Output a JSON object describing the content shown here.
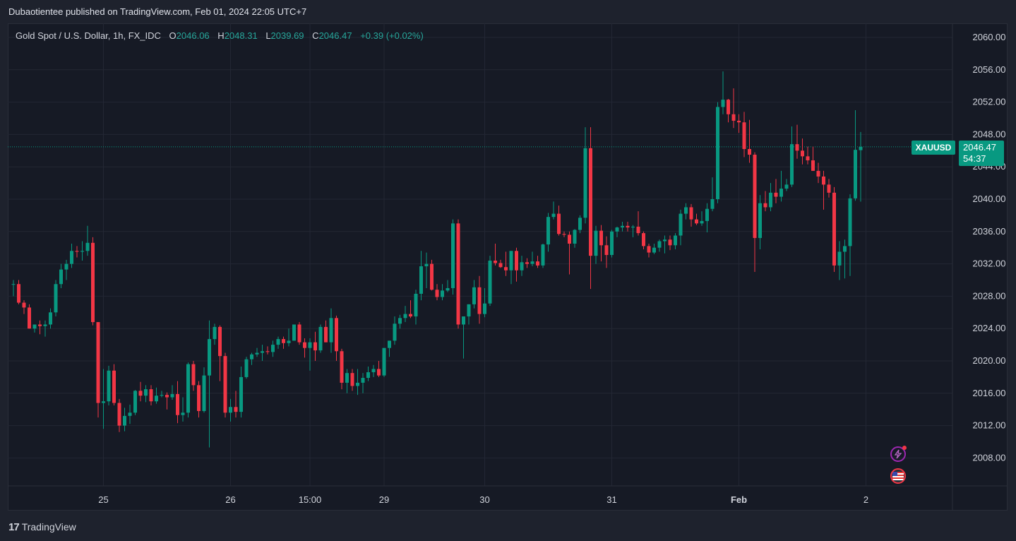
{
  "header": {
    "published_line": "Dubaotientee published on TradingView.com, Feb 01, 2024 22:05 UTC+7"
  },
  "legend": {
    "symbol": "Gold Spot / U.S. Dollar, 1h, FX_IDC",
    "o_label": "O",
    "o_value": "2046.06",
    "h_label": "H",
    "h_value": "2048.31",
    "l_label": "L",
    "l_value": "2039.69",
    "c_label": "C",
    "c_value": "2046.47",
    "change": "+0.39 (+0.02%)"
  },
  "price_tag": {
    "symbol": "XAUUSD",
    "price": "2046.47",
    "countdown": "54:37"
  },
  "footer": {
    "brand": "TradingView",
    "logo": "17"
  },
  "colors": {
    "up": "#089981",
    "down": "#f23645",
    "background": "#161a25",
    "grid": "#232734"
  },
  "icons": [
    "lightning-icon",
    "us-flag-icon"
  ],
  "chart_data": {
    "type": "candlestick",
    "title": "Gold Spot / U.S. Dollar, 1h, FX_IDC",
    "ylim": [
      2004,
      2062
    ],
    "y_ticks": [
      "2060.00",
      "2056.00",
      "2052.00",
      "2048.00",
      "2044.00",
      "2040.00",
      "2036.00",
      "2032.00",
      "2028.00",
      "2024.00",
      "2020.00",
      "2016.00",
      "2012.00",
      "2008.00"
    ],
    "x_ticks": [
      {
        "label": "25",
        "bar": 17
      },
      {
        "label": "26",
        "bar": 41
      },
      {
        "label": "15:00",
        "bar": 56
      },
      {
        "label": "29",
        "bar": 70
      },
      {
        "label": "30",
        "bar": 89
      },
      {
        "label": "31",
        "bar": 113
      },
      {
        "label": "Feb",
        "bar": 137
      },
      {
        "label": "2",
        "bar": 161
      }
    ],
    "last_price": 2046.47,
    "candles": [
      [
        2029.5,
        2030,
        2028,
        2029.5
      ],
      [
        2029.5,
        2030,
        2027,
        2027.2
      ],
      [
        2027.2,
        2027.5,
        2025.8,
        2026.6
      ],
      [
        2026.6,
        2027,
        2024,
        2024
      ],
      [
        2024,
        2024.5,
        2023.5,
        2024.5
      ],
      [
        2024.5,
        2025,
        2023.3,
        2024.3
      ],
      [
        2024.3,
        2025,
        2023,
        2024.5
      ],
      [
        2024.5,
        2026.5,
        2024,
        2026
      ],
      [
        2026,
        2030,
        2025.5,
        2029.5
      ],
      [
        2029.5,
        2032,
        2029,
        2031.3
      ],
      [
        2031.3,
        2032.5,
        2030,
        2032
      ],
      [
        2032,
        2034.5,
        2031.5,
        2033.6
      ],
      [
        2033.6,
        2034.2,
        2032.8,
        2033.5
      ],
      [
        2033.5,
        2034.8,
        2032.4,
        2033.6
      ],
      [
        2033.6,
        2036.7,
        2033,
        2034.6
      ],
      [
        2034.6,
        2035.3,
        2024.4,
        2024.8
      ],
      [
        2024.8,
        2024.8,
        2013,
        2014.8
      ],
      [
        2014.8,
        2019,
        2011.6,
        2015
      ],
      [
        2015,
        2019.4,
        2014.5,
        2018.8
      ],
      [
        2018.8,
        2019.6,
        2014.5,
        2014.8
      ],
      [
        2014.8,
        2015.3,
        2011.2,
        2012
      ],
      [
        2012,
        2014.2,
        2011.3,
        2013.2
      ],
      [
        2013.2,
        2014.6,
        2012.2,
        2013.6
      ],
      [
        2013.6,
        2016.4,
        2013.3,
        2016.3
      ],
      [
        2016.3,
        2017.4,
        2015,
        2015.7
      ],
      [
        2015.7,
        2017,
        2014.9,
        2016.5
      ],
      [
        2016.5,
        2017,
        2014.5,
        2015
      ],
      [
        2015,
        2016.7,
        2014.7,
        2015.7
      ],
      [
        2015.7,
        2016.3,
        2015.5,
        2015.8
      ],
      [
        2015.8,
        2016.1,
        2014,
        2015.5
      ],
      [
        2015.5,
        2017,
        2015.2,
        2015.9
      ],
      [
        2015.9,
        2017.5,
        2012.3,
        2013.3
      ],
      [
        2013.3,
        2015.5,
        2012.5,
        2013.6
      ],
      [
        2013.6,
        2019.8,
        2013,
        2019.6
      ],
      [
        2019.6,
        2020,
        2016.3,
        2017
      ],
      [
        2017,
        2017.5,
        2013,
        2013.8
      ],
      [
        2013.8,
        2019.2,
        2013.6,
        2018.2
      ],
      [
        2018.2,
        2025,
        2009.3,
        2022.7
      ],
      [
        2022.7,
        2024.6,
        2022,
        2024.2
      ],
      [
        2024.2,
        2024.4,
        2017.5,
        2020.6
      ],
      [
        2020.6,
        2021,
        2013,
        2013.6
      ],
      [
        2013.6,
        2015.3,
        2012.5,
        2014.3
      ],
      [
        2014.3,
        2016.3,
        2013,
        2013.7
      ],
      [
        2013.7,
        2019.3,
        2013,
        2018
      ],
      [
        2018,
        2020.5,
        2017.8,
        2020.2
      ],
      [
        2020.2,
        2021,
        2019.5,
        2020.8
      ],
      [
        2020.8,
        2021.6,
        2020.5,
        2021
      ],
      [
        2021,
        2022,
        2020,
        2021.2
      ],
      [
        2021.2,
        2021.8,
        2020.8,
        2021.1
      ],
      [
        2021.1,
        2022.5,
        2020.5,
        2022
      ],
      [
        2022,
        2023,
        2021.5,
        2022.7
      ],
      [
        2022.7,
        2023,
        2021.5,
        2022.2
      ],
      [
        2022.2,
        2024,
        2021.8,
        2022.5
      ],
      [
        2022.5,
        2024.5,
        2022.5,
        2024.5
      ],
      [
        2024.5,
        2024.8,
        2022,
        2022.3
      ],
      [
        2022.3,
        2022.8,
        2020.4,
        2021.6
      ],
      [
        2021.6,
        2022.8,
        2018.8,
        2022.3
      ],
      [
        2022.3,
        2023.6,
        2020,
        2021.3
      ],
      [
        2021.3,
        2024.5,
        2021,
        2024.2
      ],
      [
        2024.2,
        2025,
        2022.3,
        2022.3
      ],
      [
        2022.3,
        2026.5,
        2021,
        2025.3
      ],
      [
        2025.3,
        2025.6,
        2020,
        2021.2
      ],
      [
        2021.2,
        2021.5,
        2016.5,
        2017.3
      ],
      [
        2017.3,
        2019,
        2016,
        2018.5
      ],
      [
        2018.5,
        2019,
        2016.3,
        2016.9
      ],
      [
        2016.9,
        2019,
        2015.8,
        2017.3
      ],
      [
        2017.3,
        2018.5,
        2016,
        2017.9
      ],
      [
        2017.9,
        2019.3,
        2017.5,
        2018.6
      ],
      [
        2018.6,
        2019.5,
        2018,
        2019
      ],
      [
        2019,
        2020,
        2018,
        2018.2
      ],
      [
        2018.2,
        2021.5,
        2018,
        2021.6
      ],
      [
        2021.6,
        2022.5,
        2020.5,
        2022.5
      ],
      [
        2022.5,
        2025.5,
        2022,
        2024.6
      ],
      [
        2024.6,
        2025.7,
        2024,
        2025.3
      ],
      [
        2025.3,
        2026.8,
        2024.8,
        2025.8
      ],
      [
        2025.8,
        2027.5,
        2025.3,
        2025.5
      ],
      [
        2025.5,
        2028.8,
        2024.5,
        2028.3
      ],
      [
        2028.3,
        2033.6,
        2027.5,
        2031.7
      ],
      [
        2031.7,
        2033.4,
        2029,
        2032
      ],
      [
        2032,
        2032.5,
        2028.7,
        2028.8
      ],
      [
        2028.8,
        2029.5,
        2027.5,
        2027.9
      ],
      [
        2027.9,
        2029.5,
        2027.5,
        2028.7
      ],
      [
        2028.7,
        2030,
        2028.5,
        2029
      ],
      [
        2029,
        2037.5,
        2028.2,
        2037
      ],
      [
        2037,
        2037.5,
        2024,
        2024.5
      ],
      [
        2024.5,
        2025.5,
        2020.3,
        2025.5
      ],
      [
        2025.5,
        2027,
        2024.5,
        2027
      ],
      [
        2027,
        2030,
        2026.5,
        2029.1
      ],
      [
        2029.1,
        2030.5,
        2024.6,
        2025.8
      ],
      [
        2025.8,
        2029,
        2025.4,
        2027.1
      ],
      [
        2027.1,
        2033,
        2026.8,
        2032.4
      ],
      [
        2032.4,
        2034.5,
        2031.8,
        2032.1
      ],
      [
        2032.1,
        2032.5,
        2031.5,
        2031.6
      ],
      [
        2031.6,
        2033.5,
        2030.5,
        2031.2
      ],
      [
        2031.2,
        2033.6,
        2029.5,
        2033.6
      ],
      [
        2033.6,
        2034,
        2029.8,
        2031.2
      ],
      [
        2031.2,
        2033,
        2030.5,
        2032.2
      ],
      [
        2032.2,
        2032.7,
        2031.5,
        2032
      ],
      [
        2032,
        2033.5,
        2031.7,
        2032.3
      ],
      [
        2032.3,
        2033,
        2031.5,
        2031.8
      ],
      [
        2031.8,
        2034.5,
        2031.5,
        2034.4
      ],
      [
        2034.4,
        2038.3,
        2033.5,
        2037.8
      ],
      [
        2037.8,
        2039.7,
        2037.5,
        2038.2
      ],
      [
        2038.2,
        2039.2,
        2035.5,
        2035.7
      ],
      [
        2035.7,
        2036,
        2035.3,
        2035.6
      ],
      [
        2035.6,
        2036,
        2030.7,
        2034.5
      ],
      [
        2034.5,
        2036.3,
        2034,
        2036.2
      ],
      [
        2036.2,
        2038,
        2035.8,
        2037.7
      ],
      [
        2037.7,
        2048.9,
        2037,
        2046.3
      ],
      [
        2046.3,
        2048.9,
        2028.9,
        2033
      ],
      [
        2033,
        2036.7,
        2032,
        2036.1
      ],
      [
        2036.1,
        2036.8,
        2032.3,
        2034.3
      ],
      [
        2034.3,
        2035.4,
        2031.5,
        2033.1
      ],
      [
        2033.1,
        2036.2,
        2032.8,
        2036
      ],
      [
        2036,
        2036.6,
        2035.3,
        2036.5
      ],
      [
        2036.5,
        2037.2,
        2036,
        2036.7
      ],
      [
        2036.7,
        2037.2,
        2036,
        2036.5
      ],
      [
        2036.5,
        2036.8,
        2035.3,
        2036.6
      ],
      [
        2036.6,
        2038.5,
        2035.5,
        2035.8
      ],
      [
        2035.8,
        2036,
        2033.8,
        2034.2
      ],
      [
        2034.2,
        2034.5,
        2032.8,
        2033.4
      ],
      [
        2033.4,
        2034.5,
        2033.2,
        2034
      ],
      [
        2034,
        2035,
        2033.5,
        2034.8
      ],
      [
        2034.8,
        2035.5,
        2033.3,
        2035
      ],
      [
        2035,
        2035.5,
        2033.7,
        2034.3
      ],
      [
        2034.3,
        2035.8,
        2033.8,
        2035.5
      ],
      [
        2035.5,
        2038.7,
        2034.3,
        2038.2
      ],
      [
        2038.2,
        2039.5,
        2037.5,
        2039
      ],
      [
        2039,
        2039.4,
        2036.6,
        2037.5
      ],
      [
        2037.5,
        2038.2,
        2036.8,
        2037
      ],
      [
        2037,
        2038.5,
        2036.7,
        2037.3
      ],
      [
        2037.3,
        2039.5,
        2035.9,
        2038.8
      ],
      [
        2038.8,
        2042.7,
        2038.5,
        2040
      ],
      [
        2040,
        2052,
        2039.5,
        2051.4
      ],
      [
        2051.4,
        2055.8,
        2050.5,
        2052.3
      ],
      [
        2052.3,
        2052.4,
        2049.5,
        2050.5
      ],
      [
        2050.5,
        2053.7,
        2048.8,
        2049.7
      ],
      [
        2049.7,
        2050.5,
        2048.2,
        2049.5
      ],
      [
        2049.5,
        2050.8,
        2045.2,
        2046.2
      ],
      [
        2046.2,
        2049.8,
        2044.5,
        2045.5
      ],
      [
        2045.5,
        2045.8,
        2031,
        2035.2
      ],
      [
        2035.2,
        2040.5,
        2033.8,
        2039.5
      ],
      [
        2039.5,
        2041,
        2038.5,
        2039
      ],
      [
        2039,
        2042,
        2038.5,
        2040.8
      ],
      [
        2040.8,
        2042.5,
        2039.5,
        2040.3
      ],
      [
        2040.3,
        2043.5,
        2039.7,
        2041.3
      ],
      [
        2041.3,
        2042.5,
        2041,
        2041.8
      ],
      [
        2041.8,
        2049,
        2041.5,
        2046.8
      ],
      [
        2046.8,
        2049.2,
        2045,
        2046
      ],
      [
        2046,
        2047.5,
        2044.3,
        2045.3
      ],
      [
        2045.3,
        2046.5,
        2044.3,
        2044.8
      ],
      [
        2044.8,
        2046.5,
        2043.5,
        2043.5
      ],
      [
        2043.5,
        2044.5,
        2042,
        2042.8
      ],
      [
        2042.8,
        2043.5,
        2038.7,
        2041.8
      ],
      [
        2041.8,
        2042.5,
        2040.2,
        2040.8
      ],
      [
        2040.8,
        2041.5,
        2031,
        2031.8
      ],
      [
        2031.8,
        2034.8,
        2030,
        2033.5
      ],
      [
        2033.5,
        2035,
        2030.2,
        2034.2
      ],
      [
        2034.2,
        2040.6,
        2030.5,
        2040.1
      ],
      [
        2040.1,
        2051,
        2039.8,
        2046.1
      ],
      [
        2046.06,
        2048.31,
        2039.69,
        2046.47
      ]
    ]
  }
}
